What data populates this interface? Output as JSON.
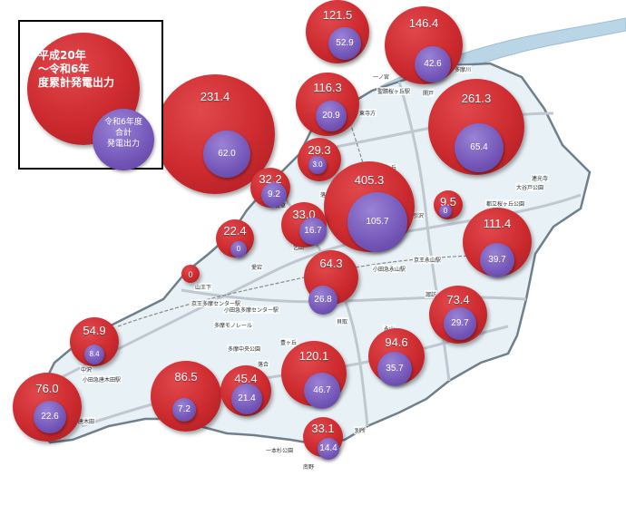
{
  "legend": {
    "title": "平成20年\n〜令和6年\n度累計発電出力",
    "sub": "令和6年度\n合計\n発電出力"
  },
  "place_labels": [
    "多摩川",
    "一ノ宮",
    "聖蹟桜ヶ丘駅",
    "関戸",
    "東寺方",
    "和田",
    "連光寺",
    "大谷戸公園",
    "桜ヶ丘",
    "都立桜ヶ丘公園",
    "百草",
    "落川",
    "馬引沢",
    "乞田",
    "愛宕",
    "山王下",
    "京王永山駅",
    "小田急永山駅",
    "唐木田",
    "中沢",
    "鶴牧",
    "落合",
    "豊ヶ丘",
    "貝取",
    "永山",
    "諏訪",
    "南野",
    "一本杉公園",
    "小田急多摩センター駅",
    "京王多摩センター駅",
    "多摩中央公園",
    "小田急唐木田駅",
    "多摩モノレール",
    "別所",
    "宝野"
  ],
  "chart_data": {
    "type": "bubble-map",
    "series": [
      {
        "name": "平成20年〜令和6年度累計発電出力"
      },
      {
        "name": "令和6年度合計発電出力"
      }
    ],
    "points": [
      {
        "cumulative": 121.5,
        "current": 52.9
      },
      {
        "cumulative": 146.4,
        "current": 42.6
      },
      {
        "cumulative": 116.3,
        "current": 20.9
      },
      {
        "cumulative": 231.4,
        "current": 62.0
      },
      {
        "cumulative": 261.3,
        "current": 65.4
      },
      {
        "cumulative": 29.3,
        "current": 3.0
      },
      {
        "cumulative": 32.2,
        "current": 9.2
      },
      {
        "cumulative": 405.3,
        "current": 105.7
      },
      {
        "cumulative": 9.5,
        "current": 0
      },
      {
        "cumulative": 33.0,
        "current": 16.7
      },
      {
        "cumulative": 22.4,
        "current": 0
      },
      {
        "cumulative": 111.4,
        "current": 39.7
      },
      {
        "cumulative": 0,
        "current": null
      },
      {
        "cumulative": 64.3,
        "current": 26.8
      },
      {
        "cumulative": 73.4,
        "current": 29.7
      },
      {
        "cumulative": 54.9,
        "current": 8.4
      },
      {
        "cumulative": 94.6,
        "current": 35.7
      },
      {
        "cumulative": 120.1,
        "current": 46.7
      },
      {
        "cumulative": 86.5,
        "current": 7.2
      },
      {
        "cumulative": 45.4,
        "current": 21.4
      },
      {
        "cumulative": 76.0,
        "current": 22.6
      },
      {
        "cumulative": 33.1,
        "current": 14.4
      }
    ]
  },
  "colors": {
    "cumulative": "#cc2a2e",
    "current": "#7456b8",
    "map_fill": "#e8f1f6",
    "road": "#bfc8d0",
    "river": "#b9d5e6"
  }
}
